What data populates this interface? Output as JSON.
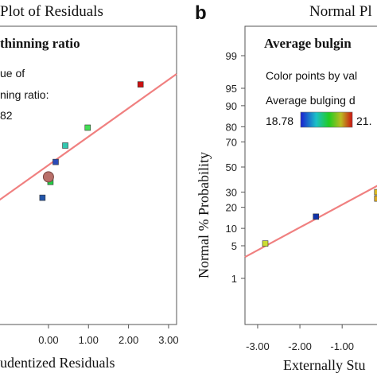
{
  "chart_data": [
    {
      "type": "scatter",
      "title": "Plot of Residuals",
      "legend_title": "thinning ratio",
      "legend_lines": [
        "ue of",
        "ning ratio:",
        "82"
      ],
      "xlabel": "udentized Residuals",
      "xticks": [
        "0.00",
        "1.00",
        "2.00",
        "3.00"
      ],
      "xlim": [
        -1.25,
        3.2
      ],
      "yticks_normalized": [],
      "points": [
        {
          "x": -0.15,
          "y": 0.425,
          "color": "#2255aa"
        },
        {
          "x": 0.05,
          "y": 0.478,
          "color": "#22cc44"
        },
        {
          "x": 0.0,
          "y": 0.495,
          "color": "#b9706a",
          "highlight": true
        },
        {
          "x": 0.18,
          "y": 0.545,
          "color": "#2a4ab8"
        },
        {
          "x": 0.42,
          "y": 0.6,
          "color": "#33c8b0"
        },
        {
          "x": 0.98,
          "y": 0.66,
          "color": "#44dd55"
        },
        {
          "x": 2.3,
          "y": 0.805,
          "color": "#cc1111"
        }
      ],
      "fit_line": {
        "x": [
          -1.25,
          3.2
        ],
        "y": [
          0.415,
          0.84
        ],
        "color": "#f08080"
      }
    },
    {
      "panel_label": "b",
      "type": "scatter",
      "title": "Normal Pl",
      "legend_title": "Average bulgin",
      "legend_line": "Color points by val",
      "colorbar_label": "Average bulging d",
      "colorbar_min": "18.78",
      "colorbar_max": "21.",
      "xlabel": "Externally Stu",
      "ylabel": "Normal % Probability",
      "xticks": [
        "-3.00",
        "-2.00",
        "-1.00"
      ],
      "xlim": [
        -3.3,
        -0.1
      ],
      "yticks": [
        "1",
        "5",
        "10",
        "20",
        "30",
        "50",
        "70",
        "80",
        "90",
        "95",
        "99"
      ],
      "points": [
        {
          "x": -2.82,
          "y": 5.5,
          "color": "#ccdd33"
        },
        {
          "x": -1.62,
          "y": 15.0,
          "color": "#1133aa"
        },
        {
          "x": -0.17,
          "y": 30.0,
          "color": "#ddbb22"
        },
        {
          "x": -0.17,
          "y": 25.5,
          "color": "#ddaa22"
        }
      ],
      "fit_line": {
        "x": [
          -3.3,
          -0.1
        ],
        "y": [
          3.0,
          36.0
        ],
        "color": "#f08080"
      }
    }
  ]
}
